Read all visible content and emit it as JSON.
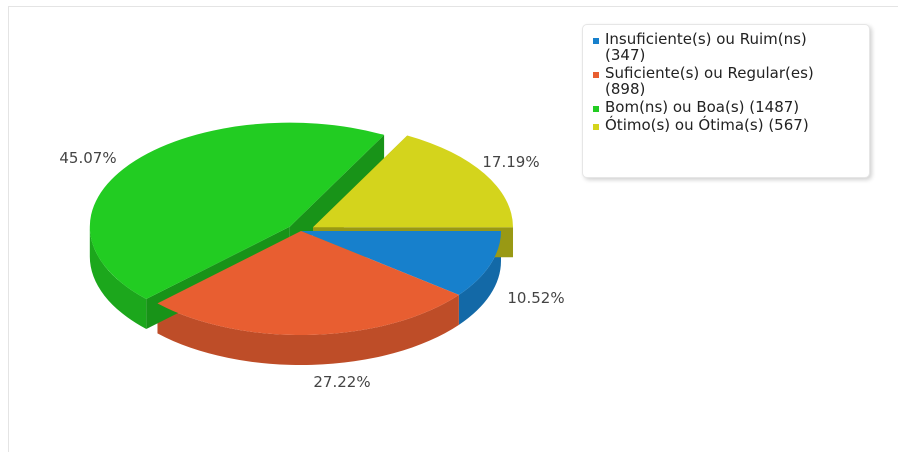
{
  "chart_data": {
    "type": "pie",
    "style": "3d",
    "title": "",
    "series": [
      {
        "name": "Insuficiente(s) ou Ruim(ns) (347)",
        "value": 347,
        "percent_label": "10.52%",
        "color": "#1780cc"
      },
      {
        "name": "Suficiente(s) ou Regular(es) (898)",
        "value": 898,
        "percent_label": "27.22%",
        "color": "#e85e31"
      },
      {
        "name": "Bom(ns) ou Boa(s) (1487)",
        "value": 1487,
        "percent_label": "45.07%",
        "color": "#22cc22"
      },
      {
        "name": "Ótimo(s) ou Ótima(s) (567)",
        "value": 567,
        "percent_label": "17.19%",
        "color": "#d4d41c"
      }
    ],
    "legend_position": "top-right"
  }
}
